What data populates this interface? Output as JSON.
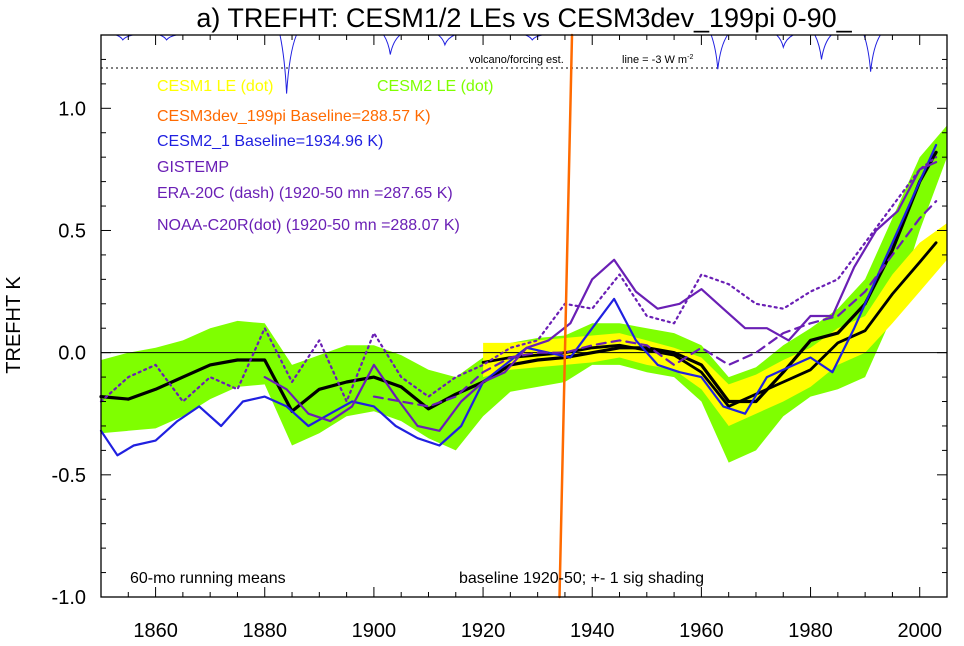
{
  "chart_data": {
    "type": "line",
    "title": "a) TREFHT: CESM1/2 LEs vs CESM3dev_199pi 0-90_",
    "xlabel": "",
    "ylabel": "TREFHT K",
    "xlim": [
      1850,
      2005
    ],
    "ylim": [
      -1.0,
      1.3
    ],
    "xticks": [
      1860,
      1880,
      1900,
      1920,
      1940,
      1960,
      1980,
      2000
    ],
    "yticks": [
      1.0,
      0.5,
      0.0,
      -0.5,
      -1.0
    ],
    "ytick_labels": [
      "1.0",
      "0.5",
      "0.0",
      "-0.5",
      "-1.0"
    ],
    "zero_line": true,
    "legend_entries": [
      {
        "text": "CESM1 LE (dot)",
        "color": "#ffff00"
      },
      {
        "text": "CESM2 LE (dot)",
        "color": "#7fff00"
      },
      {
        "text": "CESM3dev_199pi Baseline=288.57 K)",
        "color": "#ff6a00"
      },
      {
        "text": "CESM2_1 Baseline=1934.96 K)",
        "color": "#2020e0"
      },
      {
        "text": "GISTEMP",
        "color": "#6a1fb5"
      },
      {
        "text": "ERA-20C (dash) (1920-50 mn =287.65 K)",
        "color": "#6a1fb5"
      },
      {
        "text": "NOAA-C20R(dot) (1920-50 mn =288.07 K)",
        "color": "#6a1fb5"
      }
    ],
    "annotations": {
      "volcano": "volcano/forcing est.",
      "volcano_scale": "line = -3 W m",
      "volcano_scale_sup": "-2",
      "bottom_left": "60-mo running means",
      "bottom_right": "baseline 1920-50; +- 1 sig shading"
    },
    "volcano_forcing": {
      "ref_level": 1.3,
      "dotted_level": 1.165,
      "events": [
        {
          "x": 1854,
          "dip": 0.02
        },
        {
          "x": 1862,
          "dip": 0.02
        },
        {
          "x": 1884,
          "dip": 0.24
        },
        {
          "x": 1903,
          "dip": 0.08
        },
        {
          "x": 1913,
          "dip": 0.04
        },
        {
          "x": 1929,
          "dip": 0.02
        },
        {
          "x": 1963,
          "dip": 0.14
        },
        {
          "x": 1975,
          "dip": 0.05
        },
        {
          "x": 1982,
          "dip": 0.1
        },
        {
          "x": 1991,
          "dip": 0.15
        }
      ]
    },
    "bands": [
      {
        "name": "CESM2 LE",
        "color": "#7fff00",
        "x": [
          1850,
          1855,
          1860,
          1865,
          1870,
          1875,
          1880,
          1885,
          1890,
          1895,
          1900,
          1905,
          1910,
          1915,
          1920,
          1925,
          1930,
          1935,
          1940,
          1945,
          1950,
          1955,
          1960,
          1965,
          1970,
          1975,
          1980,
          1985,
          1990,
          1995,
          2000,
          2005
        ],
        "lower": [
          -0.33,
          -0.32,
          -0.31,
          -0.26,
          -0.19,
          -0.14,
          -0.13,
          -0.38,
          -0.33,
          -0.26,
          -0.24,
          -0.28,
          -0.35,
          -0.4,
          -0.26,
          -0.16,
          -0.14,
          -0.12,
          -0.05,
          -0.05,
          -0.08,
          -0.1,
          -0.2,
          -0.45,
          -0.4,
          -0.26,
          -0.18,
          -0.15,
          -0.1,
          0.15,
          0.5,
          0.8
        ],
        "upper": [
          -0.03,
          0.0,
          0.02,
          0.05,
          0.1,
          0.13,
          0.12,
          -0.05,
          -0.01,
          0.03,
          0.03,
          -0.01,
          -0.07,
          -0.1,
          -0.02,
          0.04,
          0.06,
          0.07,
          0.12,
          0.12,
          0.1,
          0.08,
          0.03,
          -0.1,
          -0.06,
          0.03,
          0.1,
          0.18,
          0.3,
          0.55,
          0.8,
          0.93
        ]
      },
      {
        "name": "CESM1 LE",
        "color": "#ffff00",
        "x": [
          1920,
          1925,
          1930,
          1935,
          1940,
          1945,
          1950,
          1955,
          1960,
          1965,
          1970,
          1975,
          1980,
          1985,
          1990,
          1995,
          2000,
          2005
        ],
        "lower": [
          -0.1,
          -0.07,
          -0.06,
          -0.05,
          -0.04,
          -0.02,
          -0.05,
          -0.07,
          -0.15,
          -0.3,
          -0.25,
          -0.2,
          -0.14,
          -0.05,
          0.0,
          0.12,
          0.25,
          0.38
        ],
        "upper": [
          0.04,
          0.04,
          0.05,
          0.06,
          0.07,
          0.08,
          0.05,
          0.02,
          -0.02,
          -0.13,
          -0.09,
          -0.03,
          0.02,
          0.1,
          0.15,
          0.32,
          0.45,
          0.53
        ]
      }
    ],
    "series": [
      {
        "name": "CESM2 LE",
        "color": "#000000",
        "width": 3.2,
        "dash": "",
        "x": [
          1850,
          1855,
          1860,
          1865,
          1870,
          1875,
          1880,
          1885,
          1890,
          1895,
          1900,
          1905,
          1910,
          1915,
          1920,
          1925,
          1930,
          1935,
          1940,
          1945,
          1950,
          1955,
          1960,
          1965,
          1970,
          1975,
          1980,
          1985,
          1990,
          1995,
          2000,
          2003
        ],
        "y": [
          -0.18,
          -0.19,
          -0.15,
          -0.1,
          -0.05,
          -0.03,
          -0.03,
          -0.24,
          -0.15,
          -0.12,
          -0.1,
          -0.14,
          -0.23,
          -0.17,
          -0.12,
          -0.05,
          -0.03,
          -0.02,
          0.0,
          0.02,
          0.02,
          0.0,
          -0.05,
          -0.2,
          -0.2,
          -0.08,
          0.05,
          0.08,
          0.2,
          0.42,
          0.7,
          0.82
        ]
      },
      {
        "name": "CESM1 LE",
        "color": "#000000",
        "width": 2.8,
        "dash": "",
        "x": [
          1920,
          1925,
          1930,
          1935,
          1940,
          1945,
          1950,
          1955,
          1960,
          1965,
          1970,
          1975,
          1980,
          1985,
          1990,
          1995,
          2000,
          2003
        ],
        "y": [
          -0.04,
          -0.02,
          -0.01,
          0.0,
          0.02,
          0.03,
          0.01,
          -0.01,
          -0.08,
          -0.22,
          -0.17,
          -0.12,
          -0.07,
          0.04,
          0.09,
          0.24,
          0.37,
          0.45
        ]
      },
      {
        "name": "CESM2_1",
        "color": "#2020e0",
        "width": 2.2,
        "dash": "",
        "x": [
          1850,
          1853,
          1856,
          1860,
          1864,
          1868,
          1872,
          1876,
          1880,
          1884,
          1888,
          1892,
          1896,
          1900,
          1904,
          1908,
          1912,
          1916,
          1920,
          1924,
          1928,
          1932,
          1936,
          1940,
          1944,
          1948,
          1952,
          1956,
          1960,
          1964,
          1968,
          1972,
          1976,
          1980,
          1984,
          1988,
          1992,
          1996,
          2000,
          2003
        ],
        "y": [
          -0.32,
          -0.42,
          -0.38,
          -0.36,
          -0.28,
          -0.22,
          -0.3,
          -0.2,
          -0.18,
          -0.22,
          -0.3,
          -0.25,
          -0.2,
          -0.22,
          -0.3,
          -0.35,
          -0.38,
          -0.3,
          -0.12,
          -0.05,
          0.02,
          0.0,
          -0.02,
          0.1,
          0.22,
          0.05,
          -0.05,
          -0.08,
          -0.1,
          -0.22,
          -0.25,
          -0.1,
          -0.06,
          -0.02,
          -0.08,
          0.1,
          0.3,
          0.5,
          0.7,
          0.85
        ]
      },
      {
        "name": "GISTEMP",
        "color": "#6a1fb5",
        "width": 2.2,
        "dash": "",
        "x": [
          1880,
          1884,
          1888,
          1892,
          1896,
          1900,
          1904,
          1908,
          1912,
          1916,
          1920,
          1924,
          1928,
          1932,
          1936,
          1940,
          1944,
          1948,
          1952,
          1956,
          1960,
          1964,
          1968,
          1972,
          1976,
          1980,
          1984,
          1988,
          1992,
          1996,
          2000,
          2003
        ],
        "y": [
          -0.1,
          -0.15,
          -0.25,
          -0.28,
          -0.22,
          -0.05,
          -0.18,
          -0.3,
          -0.32,
          -0.2,
          -0.12,
          -0.08,
          0.02,
          0.05,
          0.12,
          0.3,
          0.38,
          0.25,
          0.18,
          0.2,
          0.26,
          0.18,
          0.1,
          0.1,
          0.05,
          0.15,
          0.15,
          0.35,
          0.5,
          0.58,
          0.75,
          0.78
        ]
      },
      {
        "name": "ERA-20C",
        "color": "#6a1fb5",
        "width": 2.2,
        "dash": "9 6",
        "x": [
          1900,
          1905,
          1910,
          1915,
          1920,
          1925,
          1930,
          1935,
          1940,
          1945,
          1950,
          1955,
          1960,
          1965,
          1970,
          1975,
          1980,
          1985,
          1990,
          1995,
          2000,
          2003
        ],
        "y": [
          -0.18,
          -0.2,
          -0.22,
          -0.18,
          -0.08,
          -0.02,
          0.0,
          0.0,
          0.03,
          0.05,
          0.03,
          -0.05,
          0.02,
          -0.05,
          0.0,
          0.08,
          0.12,
          0.15,
          0.25,
          0.4,
          0.55,
          0.62
        ]
      },
      {
        "name": "NOAA-C20R",
        "color": "#6a1fb5",
        "width": 2.2,
        "dash": "2 4",
        "x": [
          1850,
          1855,
          1860,
          1865,
          1870,
          1875,
          1880,
          1885,
          1890,
          1895,
          1900,
          1905,
          1910,
          1915,
          1920,
          1925,
          1930,
          1935,
          1940,
          1945,
          1950,
          1955,
          1960,
          1965,
          1970,
          1975,
          1980,
          1985,
          1990,
          1995,
          2000,
          2003
        ],
        "y": [
          -0.2,
          -0.1,
          -0.05,
          -0.2,
          -0.1,
          -0.15,
          0.1,
          -0.12,
          0.05,
          -0.2,
          0.08,
          -0.1,
          -0.18,
          -0.1,
          -0.05,
          0.02,
          0.05,
          0.2,
          0.18,
          0.32,
          0.15,
          0.12,
          0.32,
          0.28,
          0.2,
          0.18,
          0.25,
          0.3,
          0.45,
          0.6,
          0.75,
          0.8
        ]
      },
      {
        "name": "CESM3dev_199pi",
        "color": "#ff6a00",
        "width": 2.5,
        "dash": "",
        "x": [
          1934,
          1936.3
        ],
        "y": [
          -1.0,
          1.3
        ]
      }
    ]
  }
}
